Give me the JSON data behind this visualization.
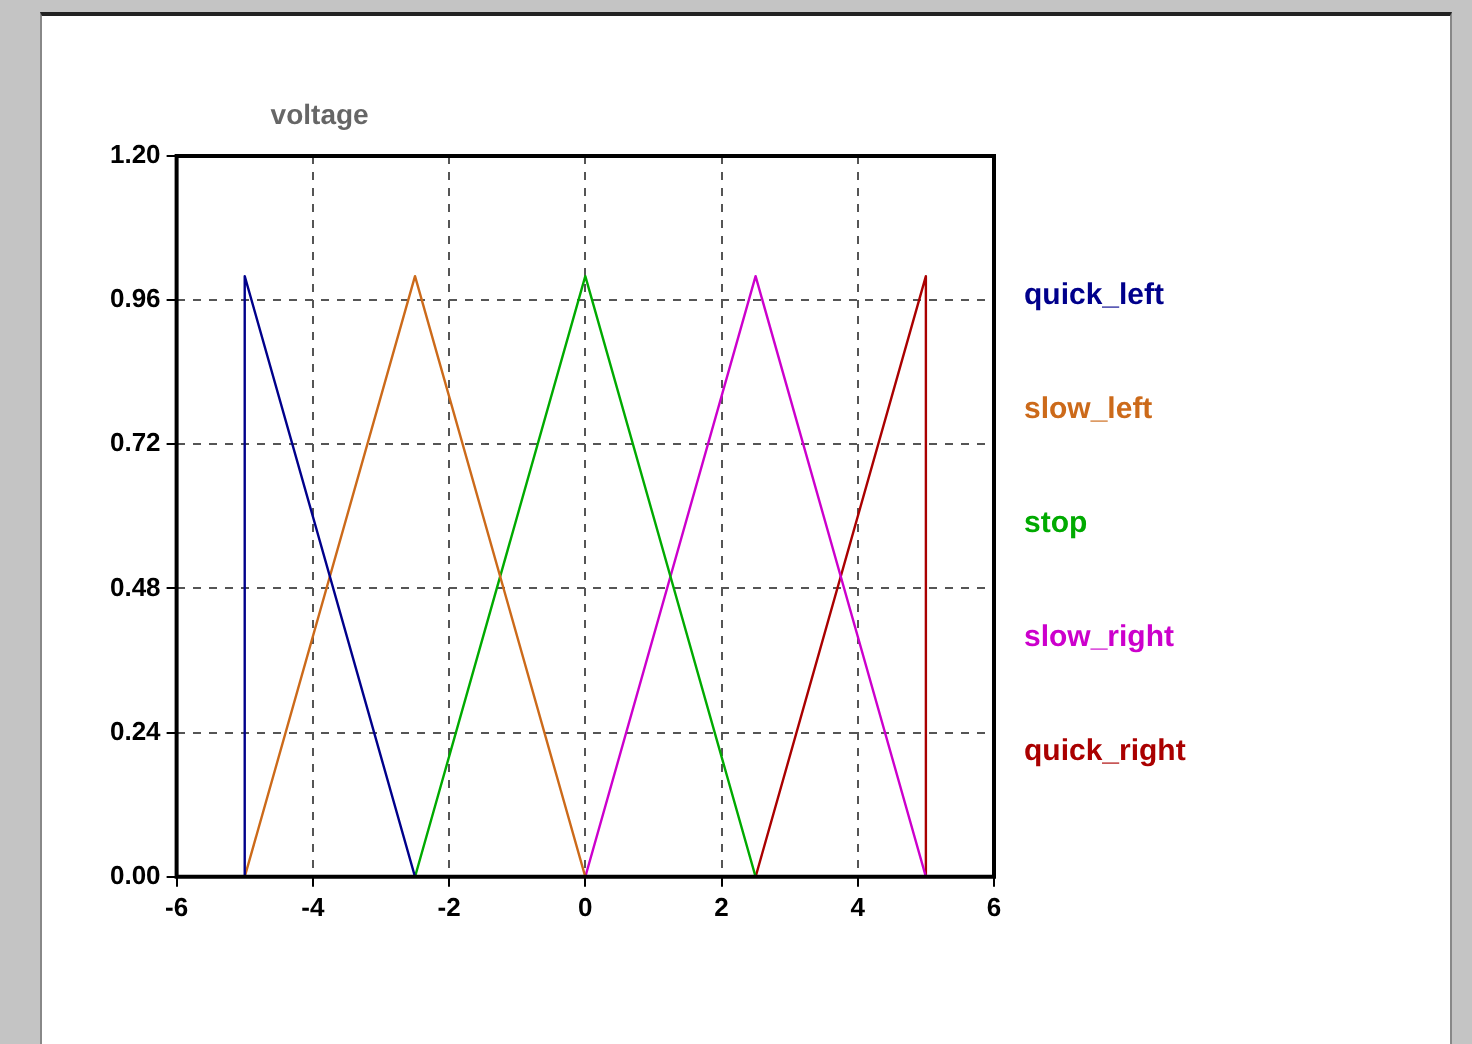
{
  "chart_data": {
    "type": "line",
    "title": "voltage",
    "xlim": [
      -6,
      6
    ],
    "xticks": [
      -6,
      -4,
      -2,
      0,
      2,
      4,
      6
    ],
    "ylim": [
      0,
      1.2
    ],
    "yticks": [
      {
        "value": 0,
        "label": "0.00"
      },
      {
        "value": 0.24,
        "label": "0.24"
      },
      {
        "value": 0.48,
        "label": "0.48"
      },
      {
        "value": 0.72,
        "label": "0.72"
      },
      {
        "value": 0.96,
        "label": "0.96"
      },
      {
        "value": 1.2,
        "label": "1.20"
      }
    ],
    "grid": true,
    "legend": "right",
    "marker": "none",
    "line_style": "solid",
    "series": [
      {
        "name": "quick_left",
        "color": "#00008b",
        "x": [
          -5,
          -5,
          -2.5
        ],
        "values": [
          0,
          1,
          0
        ]
      },
      {
        "name": "slow_left",
        "color": "#cc6a1a",
        "x": [
          -5,
          -2.5,
          0
        ],
        "values": [
          0,
          1,
          0
        ]
      },
      {
        "name": "stop",
        "color": "#00aa00",
        "x": [
          -2.5,
          0,
          2.5
        ],
        "values": [
          0,
          1,
          0
        ]
      },
      {
        "name": "slow_right",
        "color": "#cc00cc",
        "x": [
          0,
          2.5,
          5
        ],
        "values": [
          0,
          1,
          0
        ]
      },
      {
        "name": "quick_right",
        "color": "#aa0000",
        "x": [
          2.5,
          5,
          5
        ],
        "values": [
          0,
          1,
          0
        ]
      }
    ]
  }
}
